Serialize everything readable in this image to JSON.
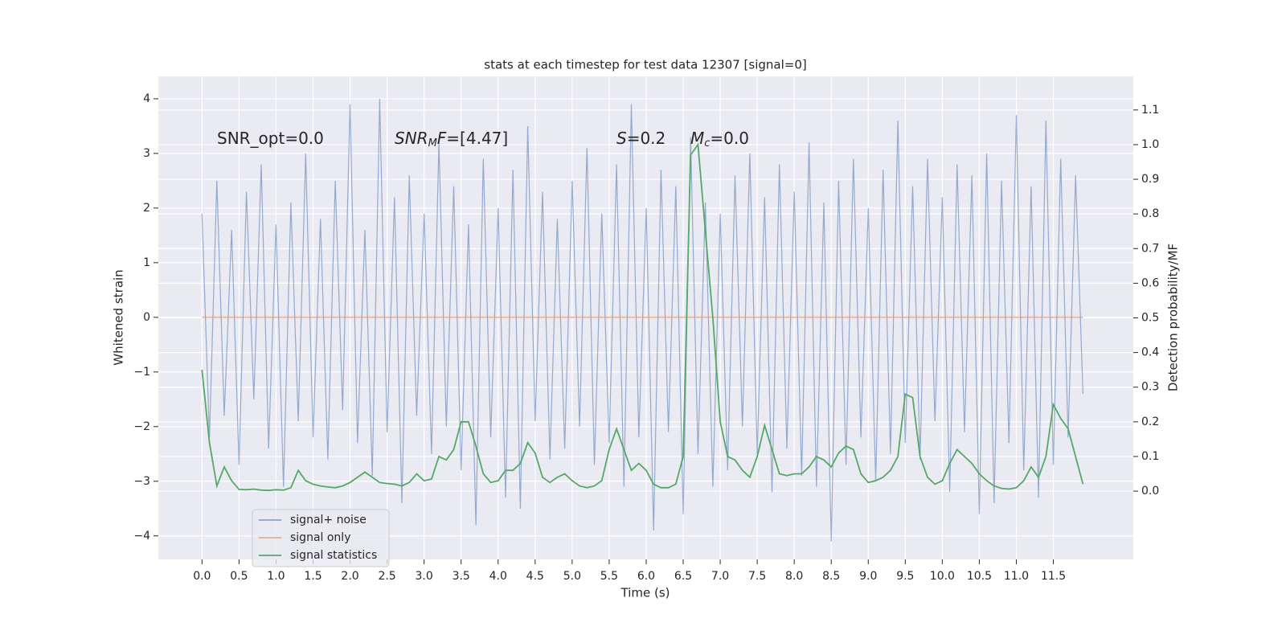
{
  "chart_data": {
    "type": "line",
    "title": "stats at each timestep for test data 12307 [signal=0]",
    "xlabel": "Time (s)",
    "ylabel": "Whitened strain",
    "y2label": "Detection probability/MF",
    "xlim": [
      -0.59,
      12.58
    ],
    "ylim": [
      -4.43,
      4.41
    ],
    "y2lim": [
      -0.197,
      1.197
    ],
    "xticks": [
      {
        "value": 0,
        "label": "0.0"
      },
      0.5,
      {
        "value": 1,
        "label": "1.0"
      },
      1.5,
      {
        "value": 2,
        "label": "2.0"
      },
      2.5,
      {
        "value": 3,
        "label": "3.0"
      },
      3.5,
      {
        "value": 4,
        "label": "4.0"
      },
      4.5,
      {
        "value": 5,
        "label": "5.0"
      },
      5.5,
      {
        "value": 6,
        "label": "6.0"
      },
      6.5,
      {
        "value": 7,
        "label": "7.0"
      },
      7.5,
      {
        "value": 8,
        "label": "8.0"
      },
      8.5,
      {
        "value": 9,
        "label": "9.0"
      },
      9.5,
      {
        "value": 10,
        "label": "10.0"
      },
      10.5,
      {
        "value": 11,
        "label": "11.0"
      },
      11.5
    ],
    "yticks": [
      {
        "value": -4,
        "label": "−4"
      },
      {
        "value": -3,
        "label": "−3"
      },
      {
        "value": -2,
        "label": "−2"
      },
      {
        "value": -1,
        "label": "−1"
      },
      0,
      1,
      2,
      3,
      4
    ],
    "y2ticks": [
      {
        "value": 0,
        "label": "0.0"
      },
      0.1,
      0.2,
      0.3,
      0.4,
      0.5,
      0.6,
      0.7,
      0.8,
      0.9,
      {
        "value": 1,
        "label": "1.0"
      },
      1.1
    ],
    "grid": true,
    "legend": "lower left",
    "x": [
      0,
      0.1,
      0.2,
      0.3,
      0.4,
      0.5,
      0.6,
      0.7,
      0.8,
      0.9,
      1,
      1.1,
      1.2,
      1.3,
      1.4,
      1.5,
      1.6,
      1.7,
      1.8,
      1.9,
      2,
      2.1,
      2.2,
      2.3,
      2.4,
      2.5,
      2.6,
      2.7,
      2.8,
      2.9,
      3,
      3.1,
      3.2,
      3.3,
      3.4,
      3.5,
      3.6,
      3.7,
      3.8,
      3.9,
      4,
      4.1,
      4.2,
      4.3,
      4.4,
      4.5,
      4.6,
      4.7,
      4.8,
      4.9,
      5,
      5.1,
      5.2,
      5.3,
      5.4,
      5.5,
      5.6,
      5.7,
      5.8,
      5.9,
      6,
      6.1,
      6.2,
      6.3,
      6.4,
      6.5,
      6.6,
      6.7,
      6.8,
      6.9,
      7,
      7.1,
      7.2,
      7.3,
      7.4,
      7.5,
      7.6,
      7.7,
      7.8,
      7.9,
      8,
      8.1,
      8.2,
      8.3,
      8.4,
      8.5,
      8.6,
      8.7,
      8.8,
      8.9,
      9,
      9.1,
      9.2,
      9.3,
      9.4,
      9.5,
      9.6,
      9.7,
      9.8,
      9.9,
      10,
      10.1,
      10.2,
      10.3,
      10.4,
      10.5,
      10.6,
      10.7,
      10.8,
      10.9,
      11,
      11.1,
      11.2,
      11.3,
      11.4,
      11.5,
      11.6,
      11.7,
      11.8,
      11.9
    ],
    "series": [
      {
        "name": "signal+ noise",
        "color": "#4c72b0",
        "values": [
          1.9,
          -2.2,
          2.5,
          -1.8,
          1.6,
          -2.7,
          2.3,
          -1.5,
          2.8,
          -2.4,
          1.7,
          -3.1,
          2.1,
          -1.9,
          3.0,
          -2.2,
          1.8,
          -2.6,
          2.5,
          -1.7,
          3.9,
          -2.3,
          1.6,
          -2.9,
          4.0,
          -2.1,
          2.2,
          -3.4,
          2.6,
          -1.8,
          1.9,
          -2.5,
          3.2,
          -2.0,
          2.4,
          -2.8,
          1.7,
          -3.8,
          2.9,
          -2.2,
          2.0,
          -3.3,
          2.7,
          -3.5,
          3.5,
          -1.9,
          2.3,
          -2.6,
          1.8,
          -2.4,
          2.5,
          -2.0,
          3.1,
          -2.7,
          1.9,
          -2.3,
          2.8,
          -3.1,
          3.9,
          -2.2,
          2.0,
          -3.9,
          2.7,
          -2.1,
          2.4,
          -3.6,
          3.3,
          -2.5,
          2.1,
          -3.1,
          1.9,
          -2.8,
          2.6,
          -2.0,
          3.0,
          -2.5,
          2.2,
          -3.2,
          2.8,
          -2.4,
          2.3,
          -2.9,
          3.2,
          -3.1,
          2.1,
          -4.1,
          2.5,
          -2.7,
          2.9,
          -2.2,
          2.0,
          -3.0,
          2.7,
          -2.5,
          3.6,
          -2.3,
          2.4,
          -2.6,
          2.9,
          -1.9,
          2.2,
          -3.2,
          2.8,
          -2.1,
          2.6,
          -3.6,
          3.0,
          -3.4,
          2.5,
          -2.3,
          3.7,
          -2.8,
          2.4,
          -3.3,
          3.6,
          -2.7,
          2.9,
          -2.2,
          2.6,
          -1.4
        ]
      },
      {
        "name": "signal only",
        "color": "#dd8452",
        "x": [
          0,
          11.9
        ],
        "values": [
          0,
          0
        ]
      },
      {
        "name": "signal statistics",
        "color": "#55a868",
        "axis": "y2",
        "values": [
          0.35,
          0.14,
          0.015,
          0.07,
          0.03,
          0.005,
          0.004,
          0.006,
          0.003,
          0.002,
          0.004,
          0.003,
          0.01,
          0.06,
          0.03,
          0.02,
          0.015,
          0.012,
          0.01,
          0.015,
          0.025,
          0.04,
          0.055,
          0.04,
          0.025,
          0.022,
          0.02,
          0.015,
          0.025,
          0.05,
          0.03,
          0.035,
          0.1,
          0.09,
          0.12,
          0.2,
          0.2,
          0.13,
          0.05,
          0.025,
          0.03,
          0.06,
          0.06,
          0.08,
          0.14,
          0.11,
          0.04,
          0.025,
          0.04,
          0.05,
          0.03,
          0.015,
          0.01,
          0.015,
          0.03,
          0.12,
          0.18,
          0.12,
          0.06,
          0.08,
          0.06,
          0.02,
          0.01,
          0.01,
          0.02,
          0.1,
          0.97,
          1.0,
          0.75,
          0.5,
          0.2,
          0.1,
          0.09,
          0.06,
          0.04,
          0.1,
          0.19,
          0.12,
          0.05,
          0.045,
          0.05,
          0.05,
          0.07,
          0.1,
          0.09,
          0.07,
          0.11,
          0.13,
          0.12,
          0.05,
          0.025,
          0.03,
          0.04,
          0.06,
          0.1,
          0.28,
          0.27,
          0.1,
          0.04,
          0.02,
          0.03,
          0.08,
          0.12,
          0.1,
          0.08,
          0.05,
          0.03,
          0.015,
          0.008,
          0.006,
          0.01,
          0.03,
          0.07,
          0.04,
          0.1,
          0.25,
          0.21,
          0.18,
          0.1,
          0.02
        ]
      }
    ],
    "annotations": [
      [
        {
          "text": "SNR_opt=0.0",
          "style": "normal"
        }
      ],
      [
        {
          "text": "SNR",
          "style": "italic"
        },
        {
          "text": "M",
          "style": "subscript"
        },
        {
          "text": "F",
          "style": "italic"
        },
        {
          "text": "=[4.47]",
          "style": "normal"
        }
      ],
      [
        {
          "text": "S",
          "style": "italic"
        },
        {
          "text": "=0.2",
          "style": "normal"
        }
      ],
      [
        {
          "text": "M",
          "style": "italic"
        },
        {
          "text": "c",
          "style": "subscript"
        },
        {
          "text": "=0.0",
          "style": "normal"
        }
      ]
    ]
  }
}
